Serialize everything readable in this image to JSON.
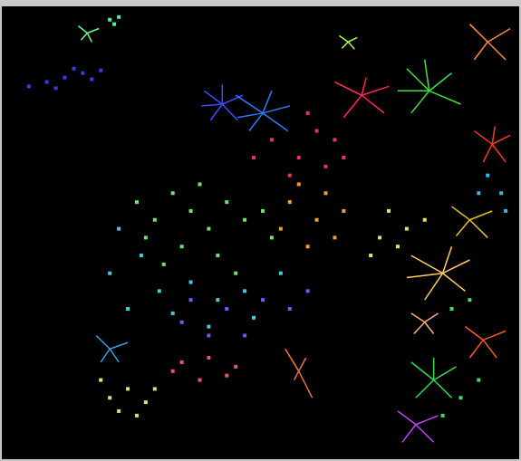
{
  "chart_data": {
    "type": "scatter",
    "xlim": [
      0,
      575
    ],
    "ylim": [
      509,
      0
    ],
    "grid": false,
    "tick_labels": false,
    "series": [
      {
        "type": "line",
        "color": "#3a4cff",
        "x": [
          245,
          225,
          null,
          245,
          268,
          null,
          245,
          262,
          null,
          245,
          232,
          null,
          245,
          245,
          null,
          245,
          222
        ],
        "y": [
          110,
          95,
          null,
          110,
          100,
          null,
          110,
          128,
          null,
          110,
          128,
          null,
          110,
          88,
          null,
          110,
          112
        ]
      },
      {
        "type": "line",
        "color": "#2e7bff",
        "x": [
          290,
          260,
          null,
          290,
          318,
          null,
          290,
          300,
          null,
          290,
          275,
          null,
          290,
          320,
          null,
          290,
          262
        ],
        "y": [
          120,
          100,
          null,
          120,
          140,
          null,
          120,
          95,
          null,
          120,
          140,
          null,
          120,
          112,
          null,
          120,
          125
        ]
      },
      {
        "type": "line",
        "color": "#3ee04a",
        "x": [
          475,
          450,
          null,
          475,
          500,
          null,
          475,
          510,
          null,
          475,
          455,
          null,
          475,
          470,
          null,
          475,
          440
        ],
        "y": [
          95,
          70,
          null,
          95,
          75,
          null,
          95,
          110,
          null,
          95,
          120,
          null,
          95,
          60,
          null,
          95,
          95
        ]
      },
      {
        "type": "line",
        "color": "#ff3a22",
        "x": [
          545,
          525,
          null,
          545,
          565,
          null,
          545,
          560,
          null,
          545,
          535,
          null,
          545,
          548
        ],
        "y": [
          155,
          140,
          null,
          155,
          145,
          null,
          155,
          175,
          null,
          155,
          175,
          null,
          155,
          135
        ]
      },
      {
        "type": "line",
        "color": "#ffd060",
        "x": [
          490,
          455,
          null,
          490,
          520,
          null,
          490,
          515,
          null,
          490,
          470,
          null,
          490,
          500,
          null,
          490,
          450
        ],
        "y": [
          300,
          280,
          null,
          300,
          285,
          null,
          300,
          320,
          null,
          300,
          330,
          null,
          300,
          270,
          null,
          300,
          305
        ]
      },
      {
        "type": "line",
        "color": "#ff5a22",
        "x": [
          535,
          515,
          null,
          535,
          560,
          null,
          535,
          550,
          null,
          535,
          520
        ],
        "y": [
          375,
          360,
          null,
          375,
          365,
          null,
          375,
          395,
          null,
          375,
          395
        ]
      },
      {
        "type": "line",
        "color": "#ffb080",
        "x": [
          470,
          455,
          null,
          470,
          485,
          null,
          470,
          480,
          null,
          470,
          458
        ],
        "y": [
          355,
          345,
          null,
          355,
          345,
          null,
          355,
          368,
          null,
          355,
          368
        ]
      },
      {
        "type": "line",
        "color": "#33dd55",
        "x": [
          480,
          455,
          null,
          480,
          505,
          null,
          480,
          500,
          null,
          480,
          460,
          null,
          480,
          480
        ],
        "y": [
          420,
          400,
          null,
          420,
          405,
          null,
          420,
          440,
          null,
          420,
          440,
          null,
          420,
          395
        ]
      },
      {
        "type": "line",
        "color": "#bb44ff",
        "x": [
          460,
          440,
          null,
          460,
          485,
          null,
          460,
          480,
          null,
          460,
          445
        ],
        "y": [
          470,
          455,
          null,
          470,
          460,
          null,
          470,
          490,
          null,
          470,
          490
        ]
      },
      {
        "type": "line",
        "color": "#ff8a33",
        "x": [
          540,
          520,
          null,
          540,
          565,
          null,
          540,
          560,
          null,
          540,
          525
        ],
        "y": [
          40,
          20,
          null,
          40,
          25,
          null,
          40,
          60,
          null,
          40,
          60
        ]
      },
      {
        "type": "line",
        "color": "#ff2a55",
        "x": [
          400,
          370,
          null,
          400,
          430,
          null,
          400,
          425,
          null,
          400,
          380,
          null,
          400,
          405
        ],
        "y": [
          100,
          85,
          null,
          100,
          90,
          null,
          100,
          120,
          null,
          100,
          125,
          null,
          100,
          80
        ]
      },
      {
        "type": "line",
        "color": "#66ff88",
        "x": [
          95,
          85,
          null,
          95,
          108,
          null,
          95,
          100,
          null,
          95,
          88
        ],
        "y": [
          30,
          22,
          null,
          30,
          25,
          null,
          30,
          40,
          null,
          30,
          38
        ]
      },
      {
        "type": "line",
        "color": "#aaff44",
        "x": [
          385,
          375,
          null,
          385,
          395,
          null,
          385,
          392,
          null,
          385,
          378
        ],
        "y": [
          40,
          33,
          null,
          40,
          35,
          null,
          40,
          48,
          null,
          40,
          47
        ]
      },
      {
        "type": "line",
        "color": "#e87a40",
        "x": [
          330,
          315,
          null,
          330,
          345,
          null,
          330,
          325,
          null,
          330,
          338
        ],
        "y": [
          410,
          385,
          null,
          410,
          440,
          null,
          410,
          420,
          null,
          410,
          395
        ]
      },
      {
        "type": "line",
        "color": "#3aa0e0",
        "x": [
          120,
          105,
          null,
          120,
          140,
          null,
          120,
          130,
          null,
          120,
          110
        ],
        "y": [
          385,
          370,
          null,
          385,
          378,
          null,
          385,
          400,
          null,
          385,
          400
        ]
      },
      {
        "type": "line",
        "color": "#e6c020",
        "x": [
          520,
          500,
          null,
          520,
          545,
          null,
          520,
          540,
          null,
          520,
          505
        ],
        "y": [
          240,
          225,
          null,
          240,
          230,
          null,
          240,
          260,
          null,
          240,
          258
        ]
      },
      {
        "type": "scatter",
        "marker": "square",
        "color": "#6ee66e",
        "x": [
          150,
          170,
          190,
          210,
          230,
          250,
          270,
          200,
          180,
          240,
          260,
          220,
          290,
          160,
          300
        ],
        "y": [
          220,
          240,
          210,
          230,
          250,
          220,
          240,
          270,
          290,
          280,
          300,
          200,
          230,
          260,
          260
        ]
      },
      {
        "type": "scatter",
        "marker": "square",
        "color": "#44ccdd",
        "x": [
          130,
          155,
          175,
          210,
          240,
          270,
          120,
          190,
          280,
          310,
          140,
          230
        ],
        "y": [
          250,
          280,
          320,
          310,
          330,
          320,
          300,
          345,
          350,
          300,
          340,
          360
        ]
      },
      {
        "type": "scatter",
        "marker": "square",
        "color": "#6a5cff",
        "x": [
          210,
          250,
          290,
          320,
          230,
          270,
          200,
          340
        ],
        "y": [
          330,
          340,
          330,
          340,
          370,
          370,
          355,
          320
        ]
      },
      {
        "type": "scatter",
        "marker": "square",
        "color": "#f0a030",
        "x": [
          320,
          350,
          370,
          340,
          330,
          360,
          310,
          380
        ],
        "y": [
          220,
          240,
          260,
          270,
          200,
          210,
          250,
          230
        ]
      },
      {
        "type": "scatter",
        "marker": "square",
        "color": "#e0307a",
        "x": [
          300,
          330,
          350,
          360,
          320,
          380,
          340,
          370,
          280
        ],
        "y": [
          150,
          170,
          140,
          180,
          190,
          170,
          120,
          150,
          170
        ]
      },
      {
        "type": "scatter",
        "marker": "square",
        "color": "#3340dd",
        "x": [
          30,
          50,
          70,
          90,
          110,
          60,
          80,
          100
        ],
        "y": [
          90,
          85,
          80,
          75,
          72,
          92,
          70,
          82
        ]
      },
      {
        "type": "scatter",
        "marker": "square",
        "color": "#e05a60",
        "x": [
          200,
          230,
          260,
          220,
          250,
          190
        ],
        "y": [
          400,
          395,
          405,
          420,
          415,
          410
        ]
      },
      {
        "type": "scatter",
        "marker": "square",
        "color": "#e0e070",
        "x": [
          120,
          140,
          160,
          150,
          130,
          170,
          110
        ],
        "y": [
          440,
          430,
          445,
          460,
          455,
          430,
          420
        ]
      },
      {
        "type": "scatter",
        "marker": "square",
        "color": "#f0e060",
        "x": [
          430,
          450,
          470,
          440,
          420,
          410
        ],
        "y": [
          230,
          250,
          240,
          270,
          260,
          280
        ]
      },
      {
        "type": "scatter",
        "marker": "square",
        "color": "#33bbee",
        "x": [
          540,
          555,
          530,
          560
        ],
        "y": [
          190,
          210,
          210,
          230
        ]
      },
      {
        "type": "scatter",
        "marker": "square",
        "color": "#55ee99",
        "x": [
          120,
          130,
          125
        ],
        "y": [
          15,
          12,
          20
        ]
      },
      {
        "type": "scatter",
        "marker": "square",
        "color": "#44dd66",
        "x": [
          500,
          520,
          510,
          490,
          530
        ],
        "y": [
          340,
          330,
          440,
          460,
          420
        ]
      }
    ]
  }
}
